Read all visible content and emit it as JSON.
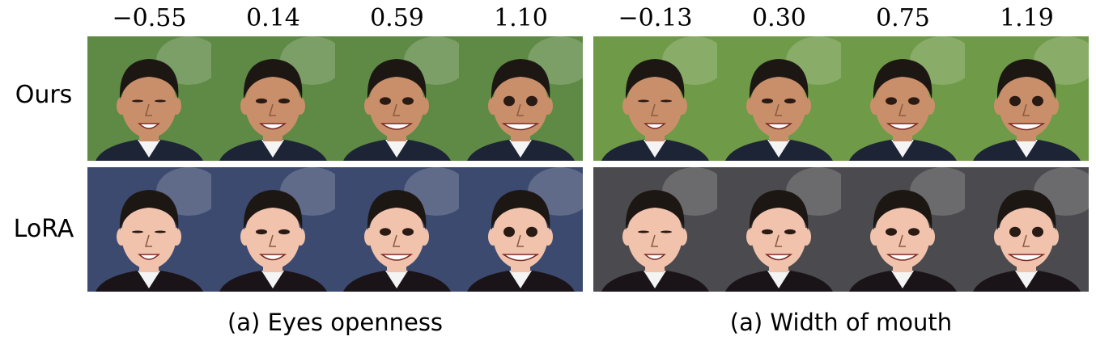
{
  "row_labels": {
    "ours": "Ours",
    "lora": "LoRA"
  },
  "panels": [
    {
      "caption": "(a) Eyes openness",
      "values": [
        "−0.55",
        "0.14",
        "0.59",
        "1.10"
      ],
      "ours_background": "#5e8a45",
      "lora_background": "#3d4a70"
    },
    {
      "caption": "(a) Width of mouth",
      "values": [
        "−0.13",
        "0.30",
        "0.75",
        "1.19"
      ],
      "ours_background": "#6f9a47",
      "lora_background": "#4b4a4e"
    }
  ]
}
